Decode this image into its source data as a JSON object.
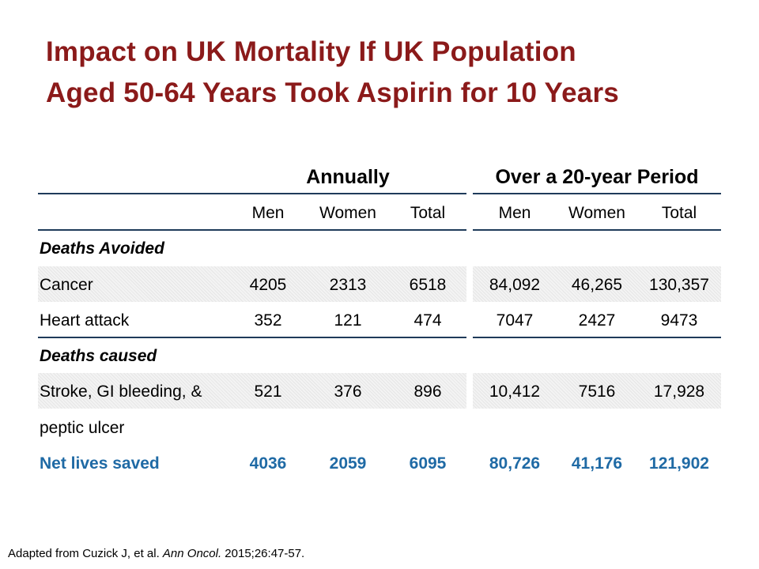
{
  "title": {
    "line1": "Impact on UK Mortality If UK Population",
    "line2": "Aged 50-64 Years Took Aspirin for 10 Years"
  },
  "table": {
    "group_headers": {
      "annually": "Annually",
      "period": "Over a 20-year Period"
    },
    "column_headers": [
      "Men",
      "Women",
      "Total",
      "Men",
      "Women",
      "Total"
    ],
    "sections": {
      "avoided": "Deaths Avoided",
      "caused": "Deaths caused"
    },
    "rows": {
      "cancer": {
        "label": "Cancer",
        "values": [
          "4205",
          "2313",
          "6518",
          "84,092",
          "46,265",
          "130,357"
        ]
      },
      "heart": {
        "label": "Heart attack",
        "values": [
          "352",
          "121",
          "474",
          "7047",
          "2427",
          "9473"
        ]
      },
      "stroke": {
        "label_line1": "Stroke, GI bleeding, &",
        "label_line2": "peptic ulcer",
        "values": [
          "521",
          "376",
          "896",
          "10,412",
          "7516",
          "17,928"
        ]
      },
      "net": {
        "label": "Net lives saved",
        "values": [
          "4036",
          "2059",
          "6095",
          "80,726",
          "41,176",
          "121,902"
        ]
      }
    }
  },
  "footnote": {
    "prefix": "Adapted from Cuzick J, et al. ",
    "journal": "Ann Oncol.",
    "suffix": " 2015;26:47-57."
  },
  "colors": {
    "title": "#8b1a1a",
    "net_row": "#1f6aa5",
    "rules": "#1f3b5a"
  }
}
